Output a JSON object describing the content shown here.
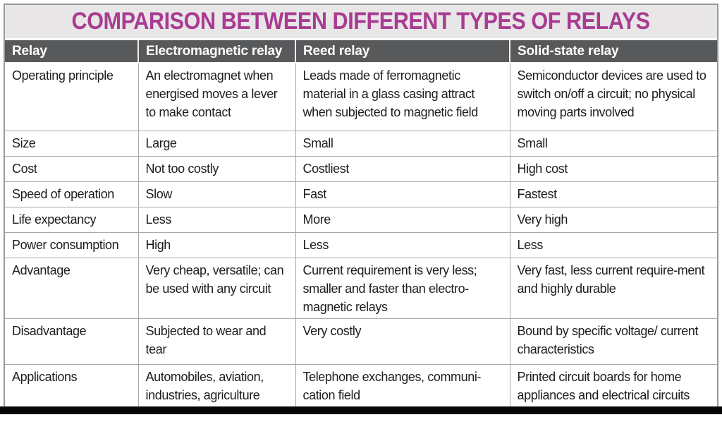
{
  "title": "COMPARISON BETWEEN DIFFERENT TYPES OF RELAYS",
  "colors": {
    "title_text": "#a93b92",
    "title_band_bg": "#e8e6e7",
    "header_bg": "#58595b",
    "header_text": "#ffffff",
    "grid_line": "#a7a9ac",
    "outer_border": "#97999b",
    "body_text": "#1d1d1f",
    "bottom_bar": "#060606"
  },
  "table": {
    "headers": [
      "Relay",
      "Electromagnetic relay",
      "Reed relay",
      "Solid-state relay"
    ],
    "rows": [
      {
        "label": "Operating principle",
        "cells": [
          "An electromagnet when energised moves a lever to make contact",
          "Leads made of ferromagnetic material in a glass casing attract when subjected to magnetic field",
          "Semiconductor devices are used to switch on/off a circuit; no physical moving parts involved"
        ]
      },
      {
        "label": "Size",
        "cells": [
          "Large",
          "Small",
          "Small"
        ]
      },
      {
        "label": "Cost",
        "cells": [
          "Not too costly",
          "Costliest",
          "High cost"
        ]
      },
      {
        "label": "Speed of operation",
        "cells": [
          "Slow",
          "Fast",
          "Fastest"
        ]
      },
      {
        "label": "Life expectancy",
        "cells": [
          "Less",
          "More",
          "Very high"
        ]
      },
      {
        "label": "Power consumption",
        "cells": [
          "High",
          "Less",
          "Less"
        ]
      },
      {
        "label": "Advantage",
        "cells": [
          "Very cheap, versatile; can be used with any circuit",
          "Current requirement is very less; smaller and faster than electro-magnetic relays",
          "Very fast, less current require-ment and highly durable"
        ]
      },
      {
        "label": "Disadvantage",
        "cells": [
          "Subjected to wear and tear",
          "Very costly",
          "Bound by specific voltage/ current characteristics"
        ]
      },
      {
        "label": "Applications",
        "cells": [
          "Automobiles, aviation, industries, agriculture",
          "Telephone exchanges, communi-cation field",
          "Printed circuit boards for home appliances and electrical circuits"
        ]
      }
    ]
  }
}
